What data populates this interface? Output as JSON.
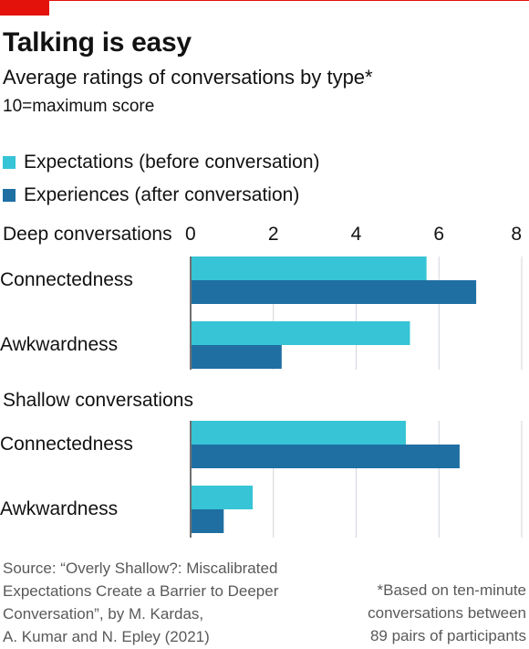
{
  "header": {
    "title": "Talking is easy",
    "subtitle": "Average ratings of conversations by type*",
    "unit": "10=maximum score"
  },
  "colors": {
    "accent_red": "#e3120b",
    "expectations": "#36c4d6",
    "experiences": "#1f6fa3"
  },
  "legend": [
    {
      "label": "Expectations (before conversation)",
      "color": "#36c4d6"
    },
    {
      "label": "Experiences (after conversation)",
      "color": "#1f6fa3"
    }
  ],
  "chart_data": {
    "type": "bar",
    "orientation": "horizontal",
    "xlim": [
      0,
      8
    ],
    "ticks": [
      "0",
      "2",
      "4",
      "6",
      "8"
    ],
    "grid": true,
    "groups": [
      {
        "name": "Deep conversations",
        "categories": [
          "Connectedness",
          "Awkwardness"
        ],
        "series": [
          {
            "name": "Expectations (before conversation)",
            "values": [
              5.7,
              5.3
            ]
          },
          {
            "name": "Experiences (after conversation)",
            "values": [
              6.9,
              2.2
            ]
          }
        ]
      },
      {
        "name": "Shallow conversations",
        "categories": [
          "Connectedness",
          "Awkwardness"
        ],
        "series": [
          {
            "name": "Expectations (before conversation)",
            "values": [
              5.2,
              1.5
            ]
          },
          {
            "name": "Experiences (after conversation)",
            "values": [
              6.5,
              0.8
            ]
          }
        ]
      }
    ]
  },
  "footer": {
    "source": [
      "Source: “Overly Shallow?: Miscalibrated",
      "Expectations Create a Barrier to Deeper",
      "Conversation”, by M. Kardas,",
      "A. Kumar and N. Epley (2021)"
    ],
    "note": [
      "*Based on ten-minute",
      "conversations between",
      "89 pairs of participants"
    ]
  }
}
